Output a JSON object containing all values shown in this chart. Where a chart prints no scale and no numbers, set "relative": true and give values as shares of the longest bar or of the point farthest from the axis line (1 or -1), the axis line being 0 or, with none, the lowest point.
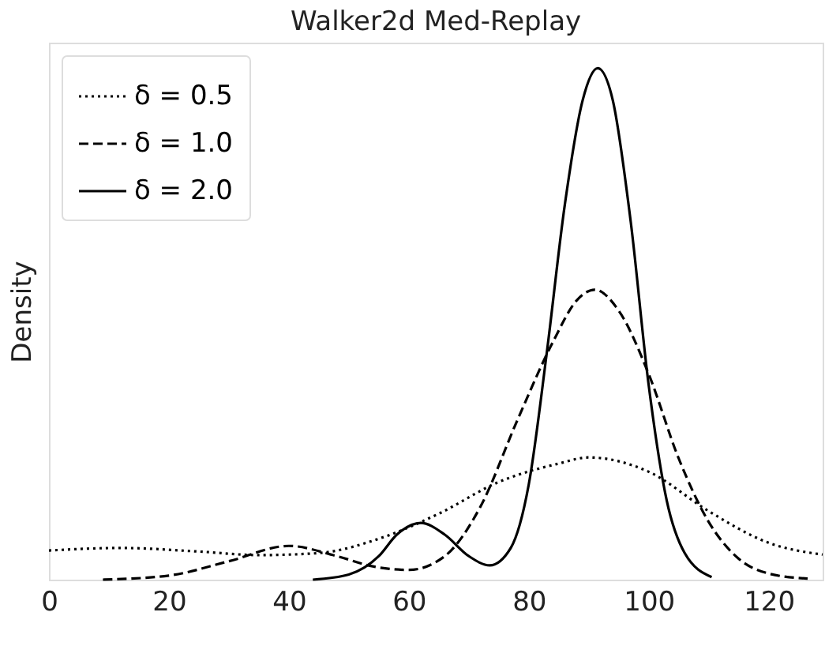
{
  "chart_data": {
    "type": "line",
    "title": "Walker2d Med-Replay",
    "ylabel": "Density",
    "relative": true,
    "xlim": [
      0,
      129
    ],
    "xticks": [
      0,
      20,
      40,
      60,
      80,
      100,
      120
    ],
    "grid": false,
    "legend": "top left",
    "marker": "none",
    "series": [
      {
        "name": "δ = 0.5",
        "color": "#000000",
        "line_style": "dotted",
        "x": [
          0,
          12,
          25,
          35,
          45,
          55,
          65,
          75,
          85,
          90,
          100,
          110,
          120,
          129
        ],
        "values": [
          0.057,
          0.062,
          0.055,
          0.048,
          0.052,
          0.08,
          0.129,
          0.191,
          0.227,
          0.239,
          0.211,
          0.134,
          0.072,
          0.049
        ]
      },
      {
        "name": "δ = 1.0",
        "color": "#000000",
        "line_style": "dashed",
        "x": [
          9,
          20,
          30,
          40,
          48,
          54,
          60,
          66,
          72,
          78,
          84,
          88,
          91,
          95,
          100,
          105,
          110,
          115,
          120,
          126.5
        ],
        "values": [
          0,
          0.008,
          0.036,
          0.066,
          0.046,
          0.026,
          0.019,
          0.046,
          0.144,
          0.309,
          0.464,
          0.546,
          0.567,
          0.526,
          0.402,
          0.237,
          0.113,
          0.041,
          0.012,
          0.002
        ]
      },
      {
        "name": "δ = 2.0",
        "color": "#000000",
        "line_style": "solid",
        "x": [
          44,
          50,
          55,
          58,
          62,
          66,
          70,
          73.5,
          77,
          80,
          83,
          86,
          89,
          91.5,
          94,
          97,
          100,
          103,
          106,
          110.5
        ],
        "values": [
          0,
          0.01,
          0.046,
          0.088,
          0.111,
          0.088,
          0.046,
          0.028,
          0.062,
          0.186,
          0.443,
          0.732,
          0.938,
          1.0,
          0.938,
          0.7,
          0.38,
          0.155,
          0.052,
          0.005
        ]
      }
    ]
  }
}
